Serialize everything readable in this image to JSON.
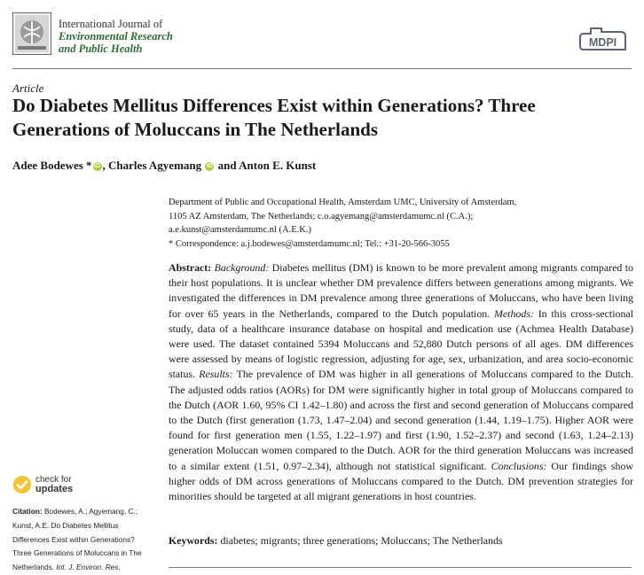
{
  "header": {
    "journal_line1": "International Journal of",
    "journal_line2": "Environmental Research",
    "journal_line3": "and Public Health",
    "publisher": "MDPI"
  },
  "article_type": "Article",
  "title": "Do Diabetes Mellitus Differences Exist within Generations? Three Generations of Moluccans in The Netherlands",
  "authors": {
    "author1": "Adee Bodewes",
    "author1_mark": "*",
    "sep1": ", ",
    "author2": "Charles Agyemang",
    "sep2": " and ",
    "author3": "Anton E. Kunst",
    "orcid_glyph": "iD"
  },
  "affiliations": {
    "line1": "Department of Public and Occupational Health, Amsterdam UMC, University of Amsterdam,",
    "line2": "1105 AZ Amsterdam, The Netherlands; c.o.agyemang@amsterdamumc.nl (C.A.);",
    "line3": "a.e.kunst@amsterdamumc.nl (A.E.K.)",
    "line4": "*  Correspondence: a.j.bodewes@amsterdamumc.nl; Tel.: +31-20-566-3055"
  },
  "abstract": {
    "label": "Abstract:",
    "background_label": "Background:",
    "background_text": " Diabetes mellitus (DM) is known to be more prevalent among migrants compared to their host populations. It is unclear whether DM prevalence differs between generations among migrants. We investigated the differences in DM prevalence among three generations of Moluccans, who have been living for over 65 years in the Netherlands, compared to the Dutch population. ",
    "methods_label": "Methods:",
    "methods_text": " In this cross-sectional study, data of a healthcare insurance database on hospital and medication use (Achmea Health Database) were used. The dataset contained 5394 Moluccans and 52,880 Dutch persons of all ages. DM differences were assessed by means of logistic regression, adjusting for age, sex, urbanization, and area socio-economic status. ",
    "results_label": "Results:",
    "results_text": " The prevalence of DM was higher in all generations of Moluccans compared to the Dutch. The adjusted odds ratios (AORs) for DM were significantly higher in total group of Moluccans compared to the Dutch (AOR 1.60, 95% CI 1.42–1.80) and across the first and second generation of Moluccans compared to the Dutch (first generation (1.73, 1.47–2.04) and second generation (1.44, 1.19–1.75). Higher AOR were found for first generation men (1.55, 1.22–1.97) and first (1.90, 1.52–2.37) and second (1.63, 1.24–2.13) generation Moluccan women compared to the Dutch. AOR for the third generation Moluccans was increased to a similar extent (1.51, 0.97–2.34), although not statistical significant. ",
    "conclusions_label": "Conclusions:",
    "conclusions_text": " Our findings show higher odds of DM across generations of Moluccans compared to the Dutch. DM prevention strategies for minorities should be targeted at all migrant generations in host countries."
  },
  "keywords": {
    "label": "Keywords:",
    "text": " diabetes; migrants; three generations; Moluccans; The Netherlands"
  },
  "check_updates": {
    "line1": "check for",
    "line2": "updates"
  },
  "citation": {
    "label": "Citation:",
    "text": " Bodewes, A.; Agyemang, C.; Kunst, A.E. Do Diabetes Mellitus Differences Exist within Generations? Three Generations of Moluccans in The Netherlands. ",
    "journal_abbrev": "Int. J. Environ. Res."
  },
  "colors": {
    "journal_green": "#2d6a3a",
    "orcid_green": "#a6ce39",
    "check_yellow": "#f4c430"
  },
  "icons": {
    "journal_logo": "journal-cover-icon",
    "publisher_logo": "mdpi-logo-icon",
    "orcid": "orcid-icon",
    "check_updates": "check-updates-icon"
  }
}
